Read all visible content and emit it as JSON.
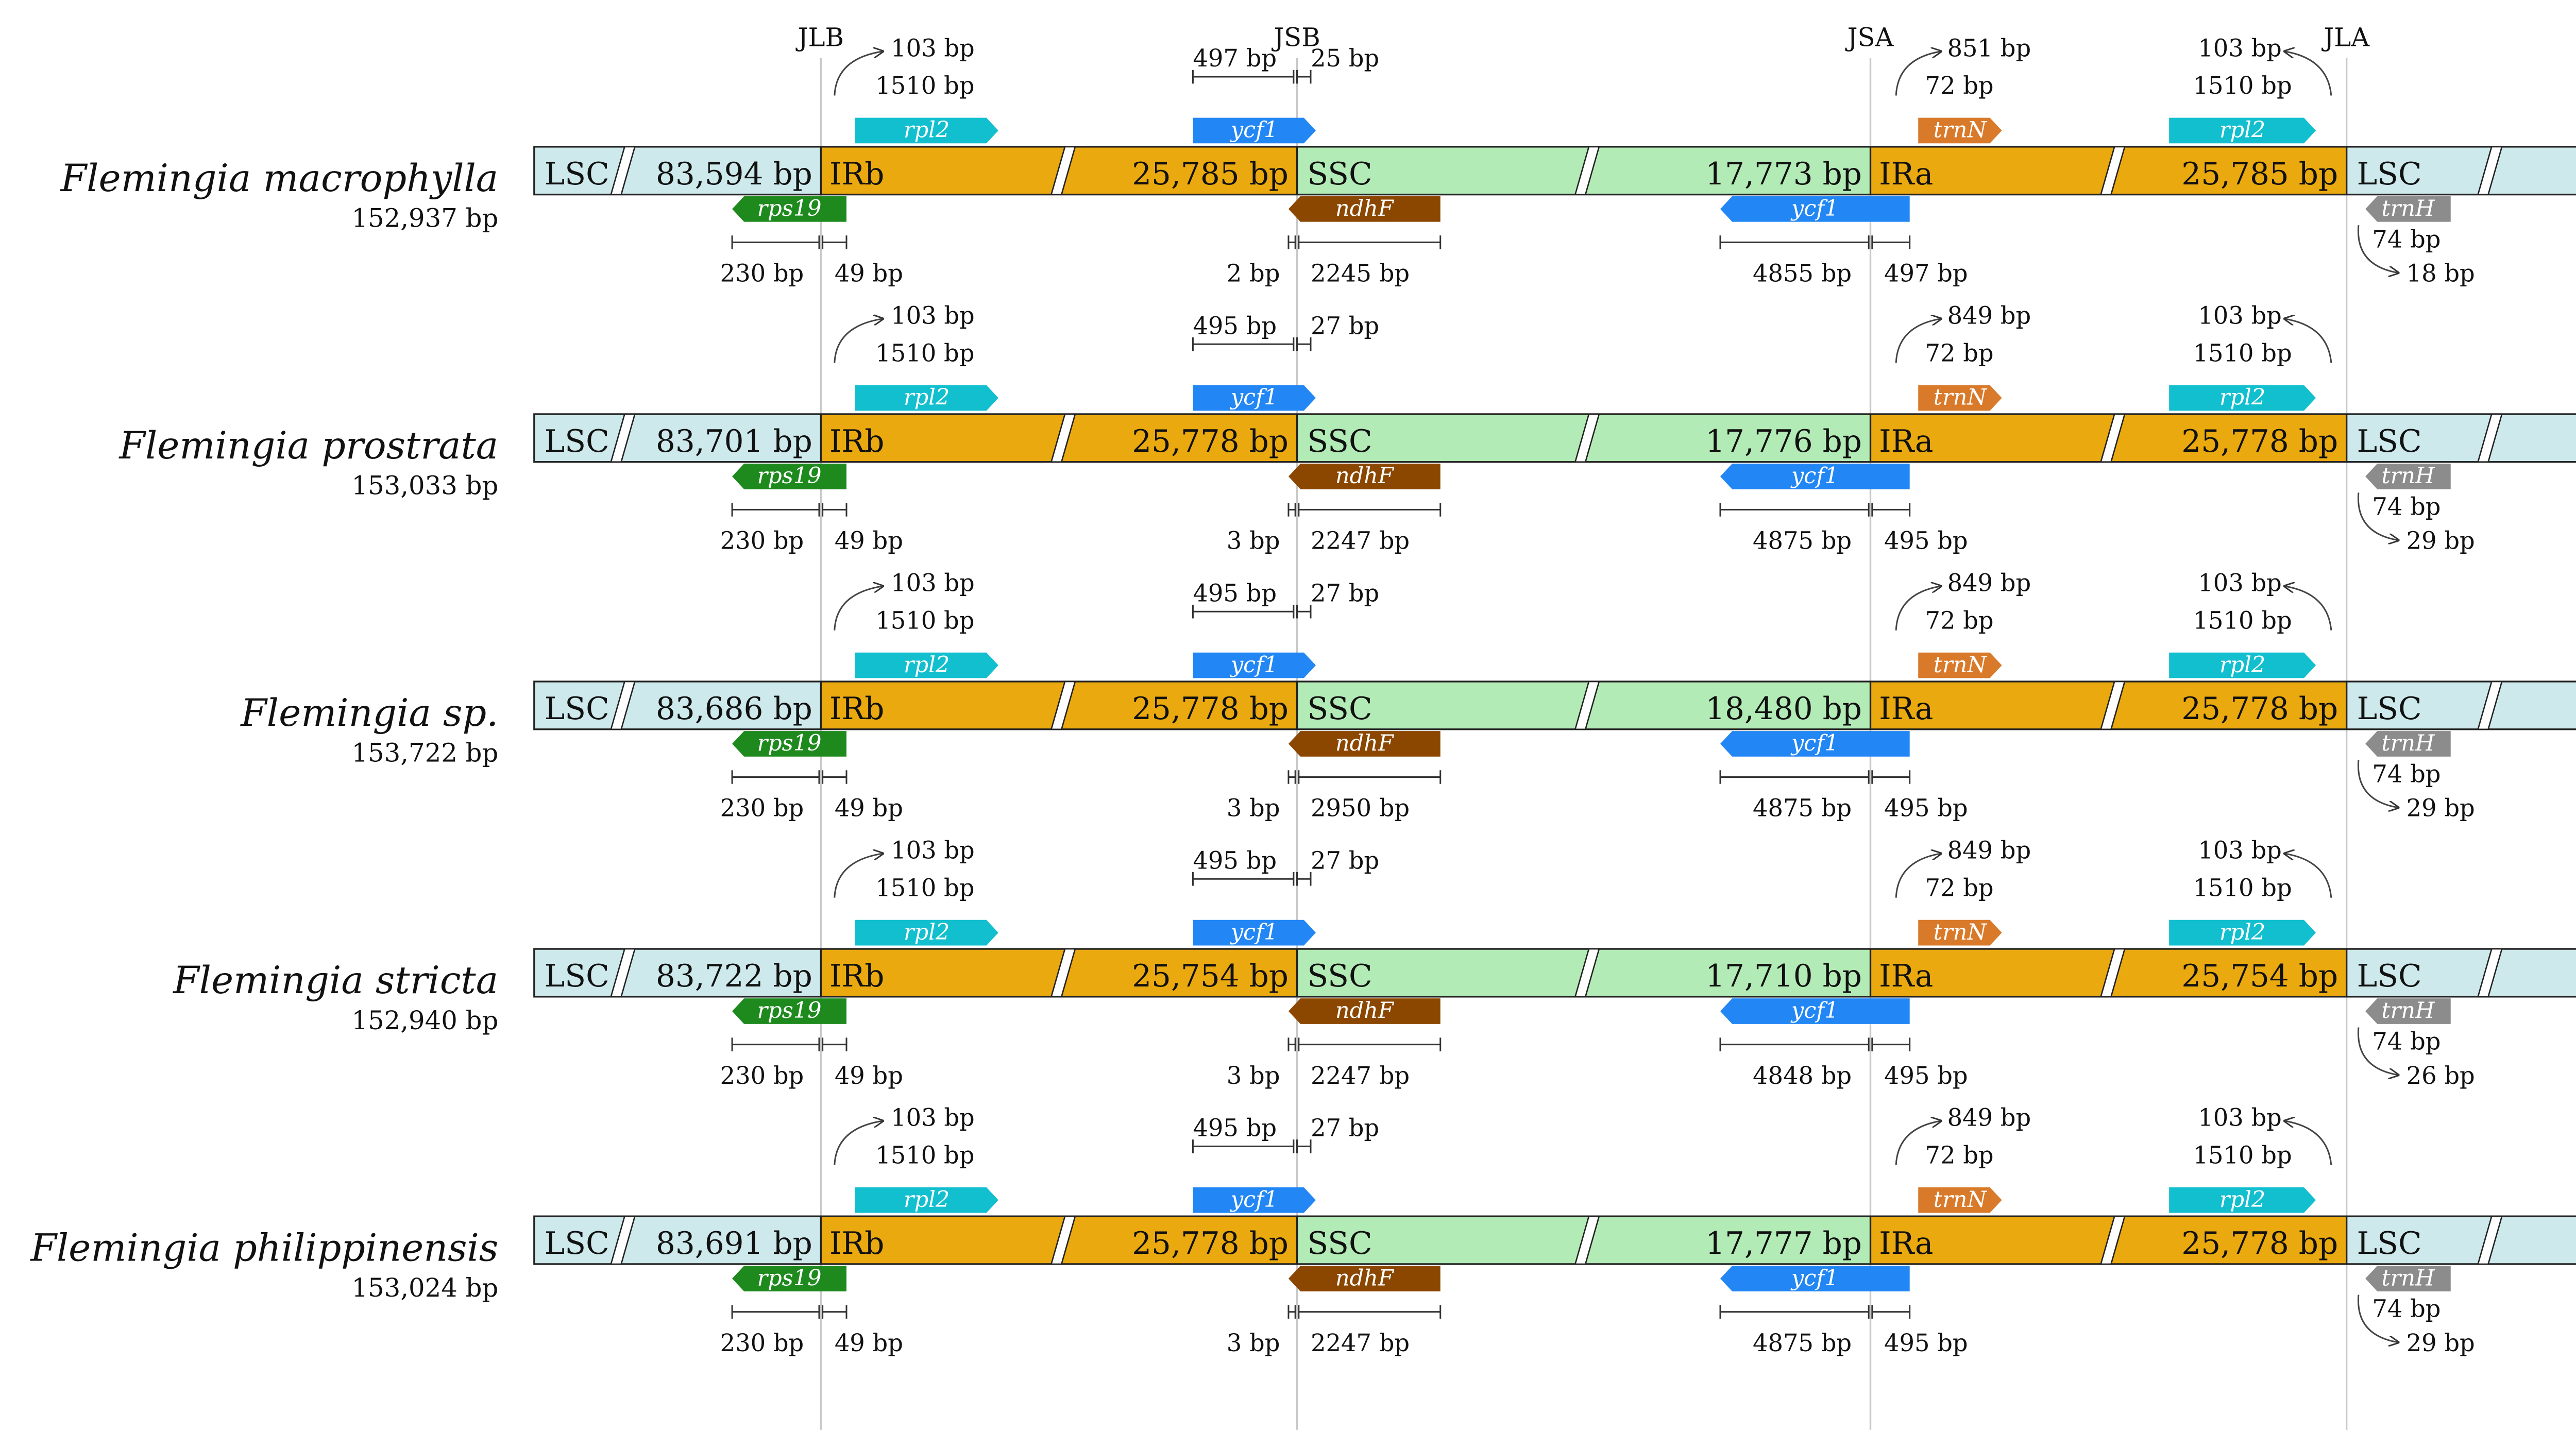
{
  "junctions": [
    "JLB",
    "JSB",
    "JSA",
    "JLA"
  ],
  "colors": {
    "lsc": "#cde9ec",
    "ir": "#eaa90e",
    "ssc": "#b3ebb6",
    "rps19": "#1e8a1e",
    "rpl2": "#12bfcf",
    "ycf1": "#2287f5",
    "ndhF": "#8b4700",
    "trnN": "#d97a2a",
    "trnH": "#8c8c8c",
    "junction_line": "#c8c8c8"
  },
  "region_labels": {
    "lsc": "LSC",
    "irb": "IRb",
    "ssc": "SSC",
    "ira": "IRa"
  },
  "gene_names": {
    "rpl2": "rpl2",
    "ycf1": "ycf1",
    "rps19": "rps19",
    "ndhF": "ndhF",
    "trnN": "trnN",
    "trnH": "trnH"
  },
  "species": [
    {
      "name": "Flemingia macrophylla",
      "total": "152,937 bp",
      "lsc": "83,594 bp",
      "ir": "25,785 bp",
      "ssc": "17,773 bp",
      "jlb_above_1": "103 bp",
      "jlb_above_2": "1510 bp",
      "jsb_above_left": "497 bp",
      "jsb_above_right": "25 bp",
      "jsa_above_1": "851 bp",
      "jsa_above_2": "72 bp",
      "jla_above_1": "103 bp",
      "jla_above_2": "1510 bp",
      "jlb_below_left": "230 bp",
      "jlb_below_right": "49 bp",
      "jsb_below_left": "2 bp",
      "jsb_below_right": "2245 bp",
      "jsa_below_left": "4855 bp",
      "jsa_below_right": "497 bp",
      "jla_below_1": "74 bp",
      "jla_below_2": "18 bp",
      "lsc_right_label": true
    },
    {
      "name": "Flemingia prostrata",
      "total": "153,033 bp",
      "lsc": "83,701 bp",
      "ir": "25,778 bp",
      "ssc": "17,776 bp",
      "jlb_above_1": "103 bp",
      "jlb_above_2": "1510 bp",
      "jsb_above_left": "495 bp",
      "jsb_above_right": "27 bp",
      "jsa_above_1": "849 bp",
      "jsa_above_2": "72 bp",
      "jla_above_1": "103 bp",
      "jla_above_2": "1510 bp",
      "jlb_below_left": "230 bp",
      "jlb_below_right": "49 bp",
      "jsb_below_left": "3 bp",
      "jsb_below_right": "2247 bp",
      "jsa_below_left": "4875 bp",
      "jsa_below_right": "495 bp",
      "jla_below_1": "74 bp",
      "jla_below_2": "29 bp",
      "lsc_right_label": true
    },
    {
      "name": "Flemingia sp.",
      "total": "153,722 bp",
      "lsc": "83,686 bp",
      "ir": "25,778 bp",
      "ssc": "18,480 bp",
      "jlb_above_1": "103 bp",
      "jlb_above_2": "1510 bp",
      "jsb_above_left": "495 bp",
      "jsb_above_right": "27 bp",
      "jsa_above_1": "849 bp",
      "jsa_above_2": "72 bp",
      "jla_above_1": "103 bp",
      "jla_above_2": "1510 bp",
      "jlb_below_left": "230 bp",
      "jlb_below_right": "49 bp",
      "jsb_below_left": "3 bp",
      "jsb_below_right": "2950 bp",
      "jsa_below_left": "4875 bp",
      "jsa_below_right": "495 bp",
      "jla_below_1": "74 bp",
      "jla_below_2": "29 bp",
      "lsc_right_label": true
    },
    {
      "name": "Flemingia stricta",
      "total": "152,940 bp",
      "lsc": "83,722 bp",
      "ir": "25,754 bp",
      "ssc": "17,710 bp",
      "jlb_above_1": "103 bp",
      "jlb_above_2": "1510 bp",
      "jsb_above_left": "495 bp",
      "jsb_above_right": "27 bp",
      "jsa_above_1": "849 bp",
      "jsa_above_2": "72 bp",
      "jla_above_1": "103 bp",
      "jla_above_2": "1510 bp",
      "jlb_below_left": "230 bp",
      "jlb_below_right": "49 bp",
      "jsb_below_left": "3 bp",
      "jsb_below_right": "2247 bp",
      "jsa_below_left": "4848 bp",
      "jsa_below_right": "495 bp",
      "jla_below_1": "74 bp",
      "jla_below_2": "26 bp",
      "lsc_right_label": true
    },
    {
      "name": "Flemingia philippinensis",
      "total": "153,024 bp",
      "lsc": "83,691 bp",
      "ir": "25,778 bp",
      "ssc": "17,777 bp",
      "jlb_above_1": "103 bp",
      "jlb_above_2": "1510 bp",
      "jsb_above_left": "495 bp",
      "jsb_above_right": "27 bp",
      "jsa_above_1": "849 bp",
      "jsa_above_2": "72 bp",
      "jla_above_1": "103 bp",
      "jla_above_2": "1510 bp",
      "jlb_below_left": "230 bp",
      "jlb_below_right": "49 bp",
      "jsb_below_left": "3 bp",
      "jsb_below_right": "2247 bp",
      "jsa_below_left": "4875 bp",
      "jsa_below_right": "495 bp",
      "jla_below_1": "74 bp",
      "jla_below_2": "29 bp",
      "lsc_right_label": true
    }
  ]
}
